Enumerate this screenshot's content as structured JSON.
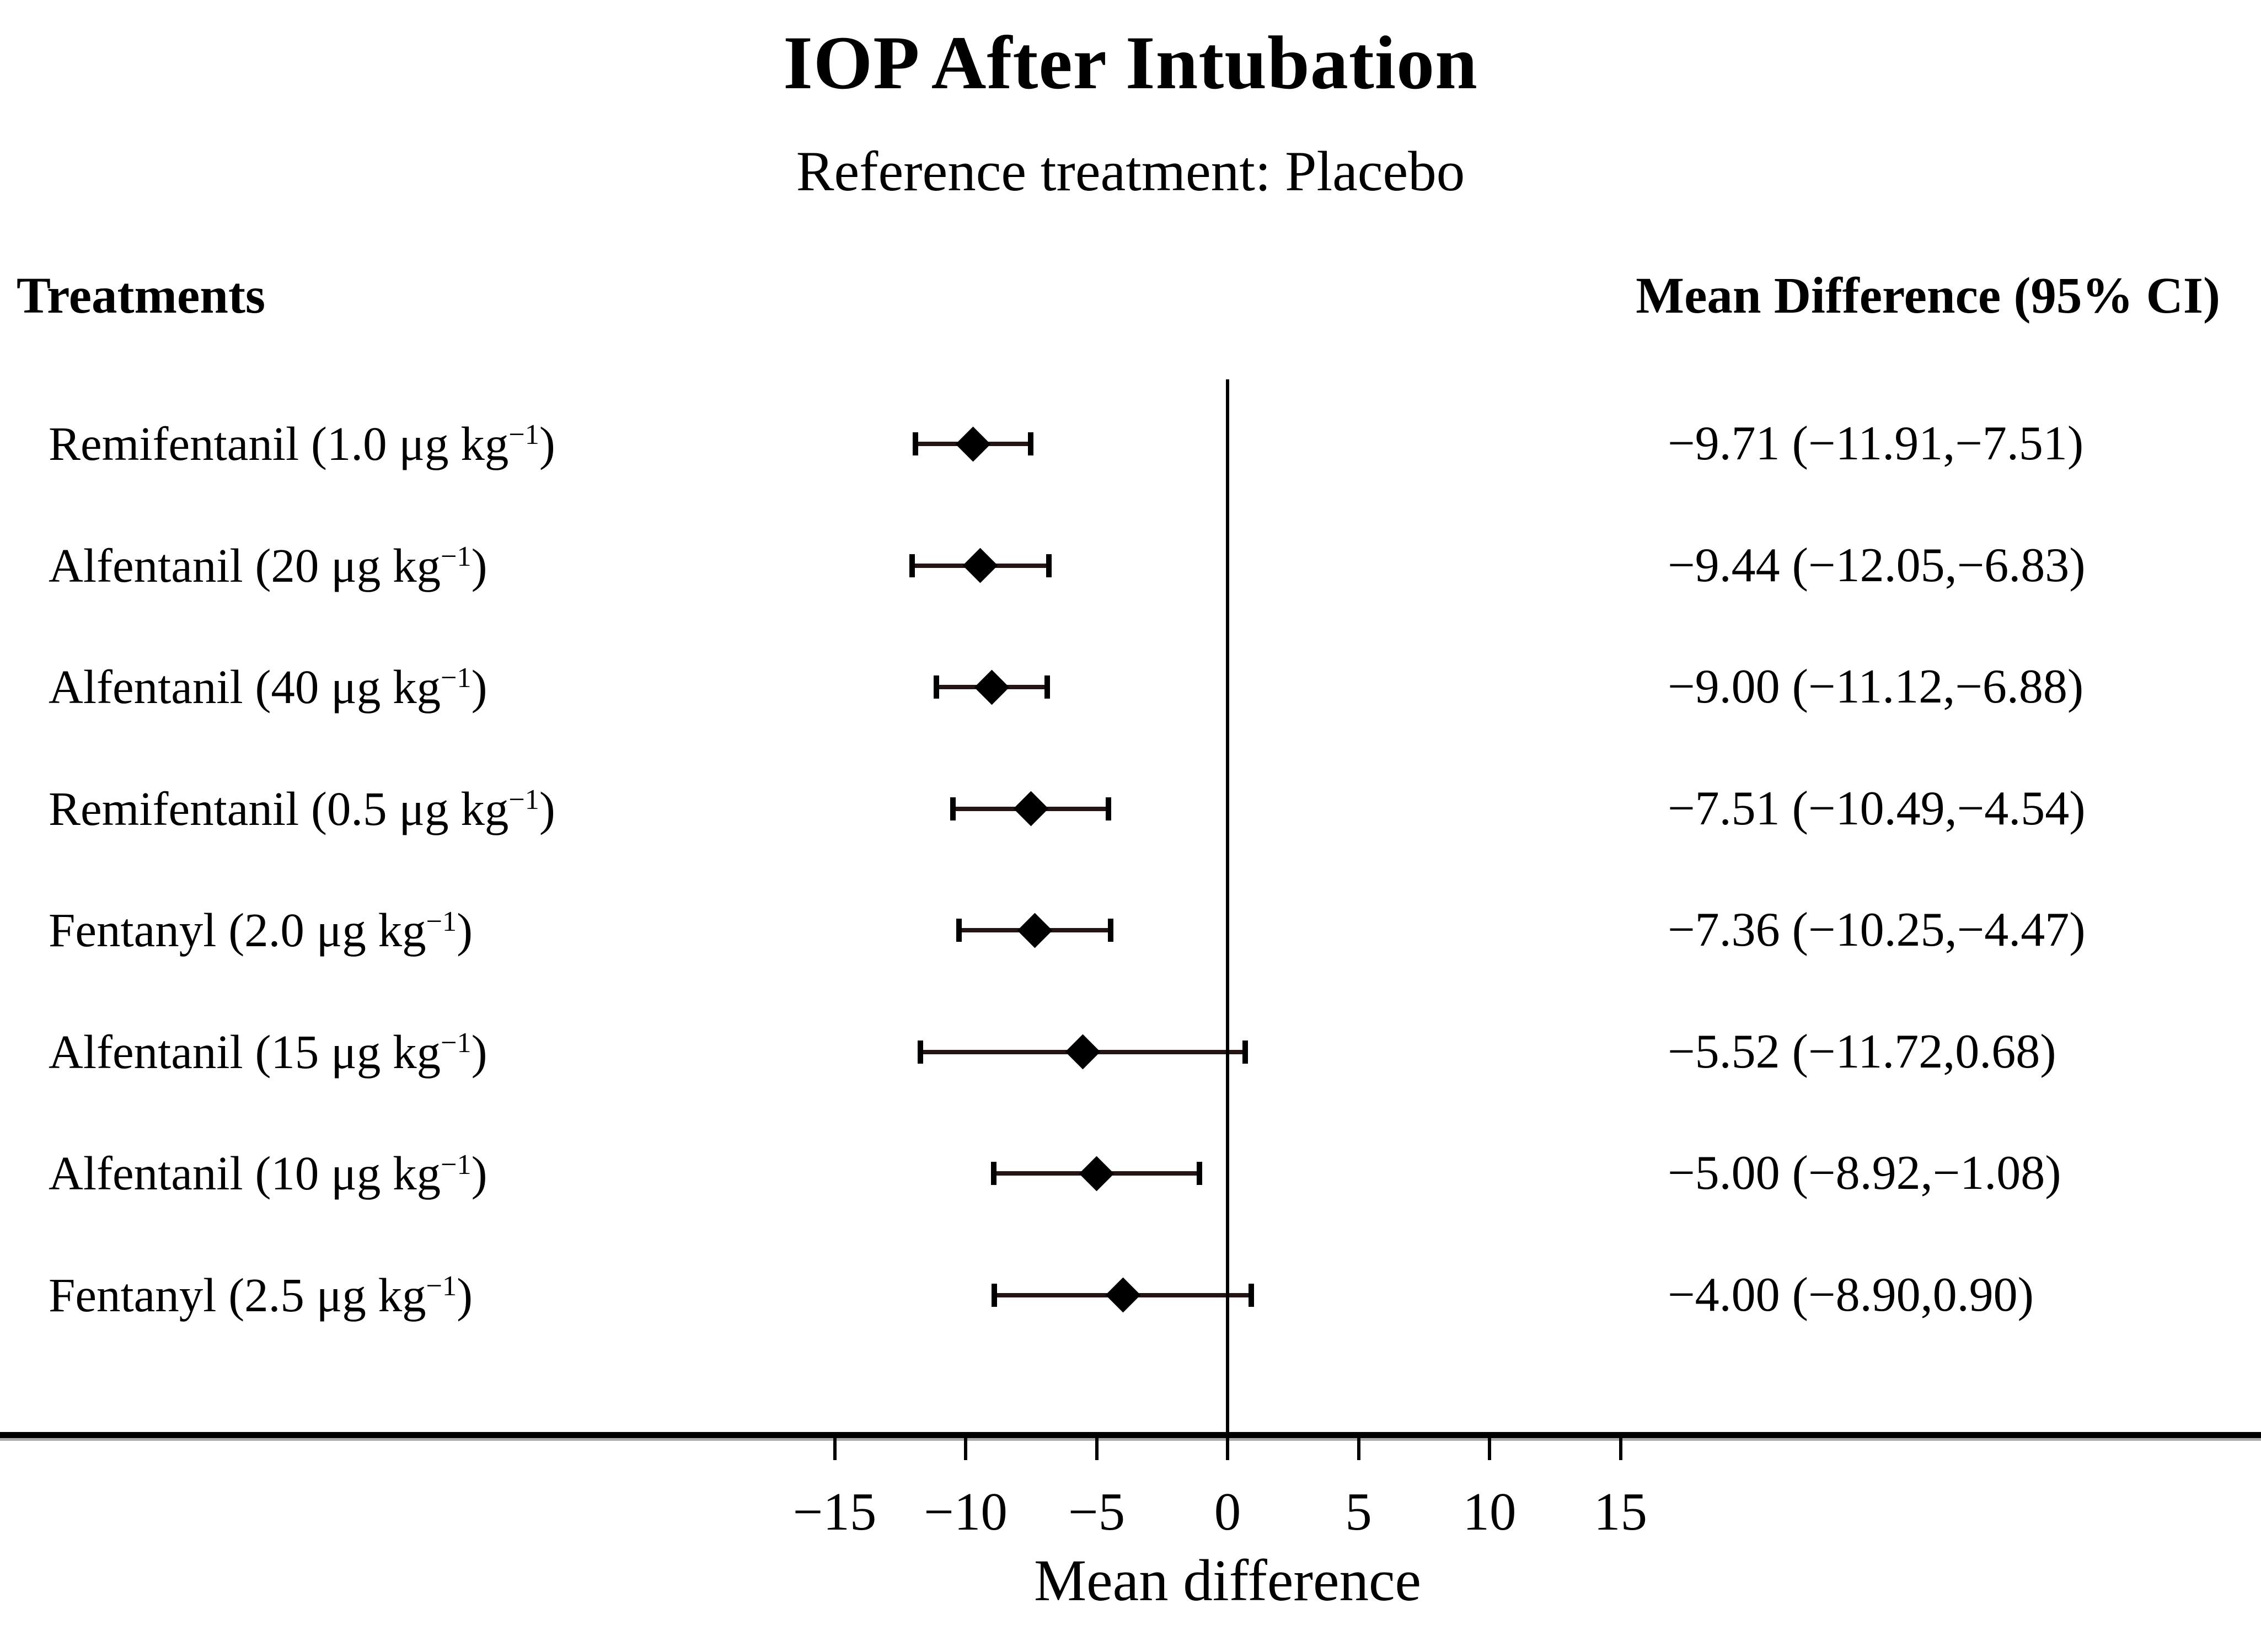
{
  "figure": {
    "title": "IOP After Intubation",
    "subtitle": "Reference treatment: Placebo",
    "left_column_header": "Treatments",
    "right_column_header": "Mean Difference (95% CI)"
  },
  "chart_data": {
    "type": "forest",
    "title": "IOP After Intubation",
    "subtitle": "Reference treatment: Placebo",
    "reference_treatment": "Placebo",
    "xlabel": "Mean difference",
    "x_ticks": [
      -15,
      -10,
      -5,
      0,
      5,
      10,
      15
    ],
    "x_tick_labels": [
      "−15",
      "−10",
      "−5",
      "0",
      "5",
      "10",
      "15"
    ],
    "reference_line_x": 0,
    "axis_line_full_width": true,
    "rows": [
      {
        "treatment": "Remifentanil (1.0 μg kg⁻¹)",
        "label_main": "Remifentanil (1.0 μg kg",
        "label_sup": "−1",
        "label_end": ")",
        "mean": -9.71,
        "ci_lower": -11.91,
        "ci_upper": -7.51,
        "display": "−9.71 (−11.91,−7.51)"
      },
      {
        "treatment": "Alfentanil (20 μg kg⁻¹)",
        "label_main": "Alfentanil (20 μg kg",
        "label_sup": "−1",
        "label_end": ")",
        "mean": -9.44,
        "ci_lower": -12.05,
        "ci_upper": -6.83,
        "display": "−9.44 (−12.05,−6.83)"
      },
      {
        "treatment": "Alfentanil (40 μg kg⁻¹)",
        "label_main": "Alfentanil (40 μg kg",
        "label_sup": "−1",
        "label_end": ")",
        "mean": -9.0,
        "ci_lower": -11.12,
        "ci_upper": -6.88,
        "display": "−9.00 (−11.12,−6.88)"
      },
      {
        "treatment": "Remifentanil (0.5 μg kg⁻¹)",
        "label_main": "Remifentanil (0.5 μg kg",
        "label_sup": "−1",
        "label_end": ")",
        "mean": -7.51,
        "ci_lower": -10.49,
        "ci_upper": -4.54,
        "display": "−7.51 (−10.49,−4.54)"
      },
      {
        "treatment": "Fentanyl (2.0 μg kg⁻¹)",
        "label_main": "Fentanyl (2.0 μg kg",
        "label_sup": "−1",
        "label_end": ")",
        "mean": -7.36,
        "ci_lower": -10.25,
        "ci_upper": -4.47,
        "display": "−7.36 (−10.25,−4.47)"
      },
      {
        "treatment": "Alfentanil (15 μg kg⁻¹)",
        "label_main": "Alfentanil (15 μg kg",
        "label_sup": "−1",
        "label_end": ")",
        "mean": -5.52,
        "ci_lower": -11.72,
        "ci_upper": 0.68,
        "display": "−5.52 (−11.72,0.68)"
      },
      {
        "treatment": "Alfentanil (10 μg kg⁻¹)",
        "label_main": "Alfentanil (10 μg kg",
        "label_sup": "−1",
        "label_end": ")",
        "mean": -5.0,
        "ci_lower": -8.92,
        "ci_upper": -1.08,
        "display": "−5.00 (−8.92,−1.08)"
      },
      {
        "treatment": "Fentanyl (2.5 μg kg⁻¹)",
        "label_main": "Fentanyl (2.5 μg kg",
        "label_sup": "−1",
        "label_end": ")",
        "mean": -4.0,
        "ci_lower": -8.9,
        "ci_upper": 0.9,
        "display": "−4.00 (−8.90,0.90)"
      }
    ]
  },
  "colors": {
    "text": "#000000",
    "marker": "#000000",
    "whisker": "#241414",
    "axis": "#000000",
    "axis_shadow": "#ababab",
    "background": "#ffffff"
  }
}
